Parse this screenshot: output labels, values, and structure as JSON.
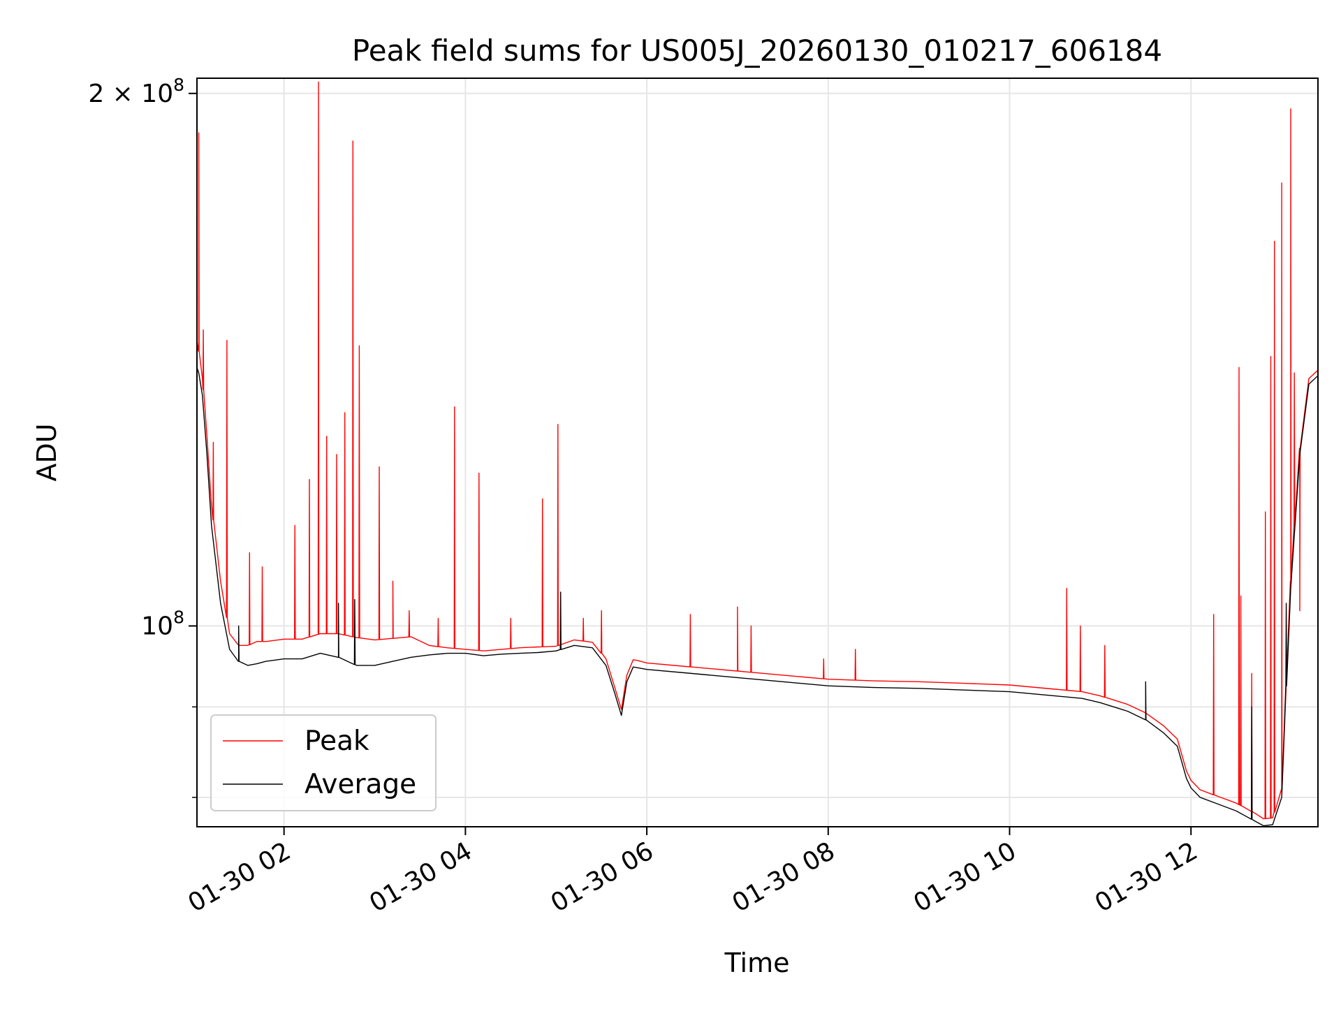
{
  "chart_data": {
    "type": "line",
    "title": "Peak field sums for US005J_20260130_010217_606184",
    "xlabel": "Time",
    "ylabel": "ADU",
    "yscale": "log",
    "grid": true,
    "legend_position": "lower-left",
    "xlim_hours": [
      1.04,
      13.4
    ],
    "ylim": [
      77000000,
      204000000
    ],
    "x_ticks": [
      {
        "value": 2,
        "label": "01-30 02"
      },
      {
        "value": 4,
        "label": "01-30 04"
      },
      {
        "value": 6,
        "label": "01-30 06"
      },
      {
        "value": 8,
        "label": "01-30 08"
      },
      {
        "value": 10,
        "label": "01-30 10"
      },
      {
        "value": 12,
        "label": "01-30 12"
      }
    ],
    "y_major_ticks": [
      {
        "value": 100000000,
        "base": "10",
        "exp": "8"
      },
      {
        "value": 200000000,
        "base": "2 × 10",
        "exp": "8"
      }
    ],
    "y_minor_ticks": [
      80000000,
      90000000
    ],
    "series": [
      {
        "name": "Average",
        "color": "#000000",
        "x": [
          1.04,
          1.06,
          1.1,
          1.15,
          1.2,
          1.3,
          1.4,
          1.5,
          1.6,
          1.7,
          1.8,
          2.0,
          2.2,
          2.4,
          2.6,
          2.8,
          3.0,
          3.2,
          3.4,
          3.6,
          3.8,
          4.0,
          4.2,
          4.4,
          4.6,
          4.8,
          5.0,
          5.2,
          5.4,
          5.55,
          5.65,
          5.72,
          5.78,
          5.85,
          5.9,
          6.0,
          6.5,
          7.0,
          7.5,
          8.0,
          8.5,
          9.0,
          9.5,
          10.0,
          10.5,
          10.8,
          11.0,
          11.3,
          11.5,
          11.7,
          11.85,
          11.95,
          12.0,
          12.1,
          12.3,
          12.5,
          12.7,
          12.8,
          12.9,
          13.0,
          13.1,
          13.2,
          13.3,
          13.4
        ],
        "y": [
          140000000,
          139000000,
          135000000,
          125000000,
          114000000,
          103000000,
          97000000,
          95500000,
          95000000,
          95200000,
          95500000,
          95800000,
          95800000,
          96500000,
          96000000,
          95000000,
          95000000,
          95500000,
          96000000,
          96300000,
          96500000,
          96500000,
          96200000,
          96400000,
          96500000,
          96600000,
          96800000,
          97500000,
          97200000,
          95000000,
          91500000,
          89000000,
          93000000,
          94800000,
          94700000,
          94500000,
          94000000,
          93500000,
          93000000,
          92500000,
          92300000,
          92200000,
          92000000,
          91800000,
          91300000,
          91000000,
          90500000,
          89500000,
          88500000,
          87000000,
          85500000,
          82000000,
          81000000,
          80000000,
          79300000,
          78600000,
          77600000,
          77100000,
          77200000,
          80000000,
          105000000,
          125000000,
          137000000,
          138500000
        ]
      },
      {
        "name": "Peak",
        "color": "#ff0000",
        "x": [
          1.04,
          1.06,
          1.1,
          1.15,
          1.2,
          1.3,
          1.4,
          1.5,
          1.6,
          1.7,
          1.8,
          2.0,
          2.2,
          2.4,
          2.6,
          2.8,
          3.0,
          3.2,
          3.4,
          3.6,
          3.8,
          4.0,
          4.2,
          4.4,
          4.6,
          4.8,
          5.0,
          5.2,
          5.4,
          5.55,
          5.65,
          5.72,
          5.78,
          5.85,
          5.9,
          6.0,
          6.5,
          7.0,
          7.5,
          8.0,
          8.5,
          9.0,
          9.5,
          10.0,
          10.5,
          10.8,
          11.0,
          11.3,
          11.5,
          11.7,
          11.85,
          11.95,
          12.0,
          12.1,
          12.3,
          12.5,
          12.7,
          12.8,
          12.9,
          13.0,
          13.1,
          13.2,
          13.3,
          13.4
        ],
        "y": [
          145000000,
          143000000,
          138000000,
          128000000,
          117000000,
          106000000,
          99000000,
          97500000,
          97500000,
          98000000,
          98000000,
          98300000,
          98300000,
          99000000,
          99000000,
          98500000,
          98200000,
          98400000,
          98600000,
          97500000,
          97200000,
          97000000,
          96800000,
          97000000,
          97200000,
          97300000,
          97400000,
          98200000,
          97900000,
          95800000,
          92200000,
          89700000,
          93800000,
          95700000,
          95600000,
          95300000,
          94800000,
          94300000,
          93800000,
          93300000,
          93100000,
          93000000,
          92800000,
          92600000,
          92100000,
          91800000,
          91300000,
          90300000,
          89300000,
          87800000,
          86300000,
          82800000,
          81800000,
          80800000,
          80100000,
          79400000,
          78400000,
          77800000,
          77900000,
          80800000,
          106000000,
          126000000,
          138000000,
          139500000
        ]
      }
    ],
    "peak_spikes": [
      {
        "x": 1.06,
        "y": 190000000
      },
      {
        "x": 1.11,
        "y": 147000000
      },
      {
        "x": 1.22,
        "y": 127000000
      },
      {
        "x": 1.37,
        "y": 145000000
      },
      {
        "x": 1.62,
        "y": 110000000
      },
      {
        "x": 1.76,
        "y": 108000000
      },
      {
        "x": 2.12,
        "y": 114000000
      },
      {
        "x": 2.28,
        "y": 121000000
      },
      {
        "x": 2.38,
        "y": 203000000
      },
      {
        "x": 2.47,
        "y": 128000000
      },
      {
        "x": 2.58,
        "y": 125000000
      },
      {
        "x": 2.67,
        "y": 132000000
      },
      {
        "x": 2.76,
        "y": 188000000
      },
      {
        "x": 2.83,
        "y": 144000000
      },
      {
        "x": 3.05,
        "y": 123000000
      },
      {
        "x": 3.2,
        "y": 106000000
      },
      {
        "x": 3.38,
        "y": 102000000
      },
      {
        "x": 3.7,
        "y": 101000000
      },
      {
        "x": 3.88,
        "y": 133000000
      },
      {
        "x": 4.15,
        "y": 122000000
      },
      {
        "x": 4.5,
        "y": 101000000
      },
      {
        "x": 4.85,
        "y": 118000000
      },
      {
        "x": 5.02,
        "y": 130000000
      },
      {
        "x": 5.3,
        "y": 101000000
      },
      {
        "x": 5.5,
        "y": 102000000
      },
      {
        "x": 6.48,
        "y": 101500000
      },
      {
        "x": 7.0,
        "y": 102500000
      },
      {
        "x": 7.15,
        "y": 100000000
      },
      {
        "x": 7.95,
        "y": 95800000
      },
      {
        "x": 8.3,
        "y": 97000000
      },
      {
        "x": 10.63,
        "y": 105000000
      },
      {
        "x": 10.78,
        "y": 100000000
      },
      {
        "x": 11.05,
        "y": 97500000
      },
      {
        "x": 12.25,
        "y": 101500000
      },
      {
        "x": 12.53,
        "y": 140000000
      },
      {
        "x": 12.55,
        "y": 104000000
      },
      {
        "x": 12.67,
        "y": 94000000
      },
      {
        "x": 12.82,
        "y": 116000000
      },
      {
        "x": 12.88,
        "y": 142000000
      },
      {
        "x": 12.92,
        "y": 165000000
      },
      {
        "x": 13.0,
        "y": 178000000
      },
      {
        "x": 13.1,
        "y": 196000000
      },
      {
        "x": 13.14,
        "y": 139000000
      },
      {
        "x": 13.2,
        "y": 102000000
      }
    ],
    "average_spikes": [
      {
        "x": 1.5,
        "y": 100000000
      },
      {
        "x": 2.6,
        "y": 103000000
      },
      {
        "x": 2.78,
        "y": 103500000
      },
      {
        "x": 5.05,
        "y": 104500000
      },
      {
        "x": 11.5,
        "y": 93000000
      },
      {
        "x": 12.67,
        "y": 90000000
      },
      {
        "x": 13.05,
        "y": 103000000
      }
    ]
  }
}
